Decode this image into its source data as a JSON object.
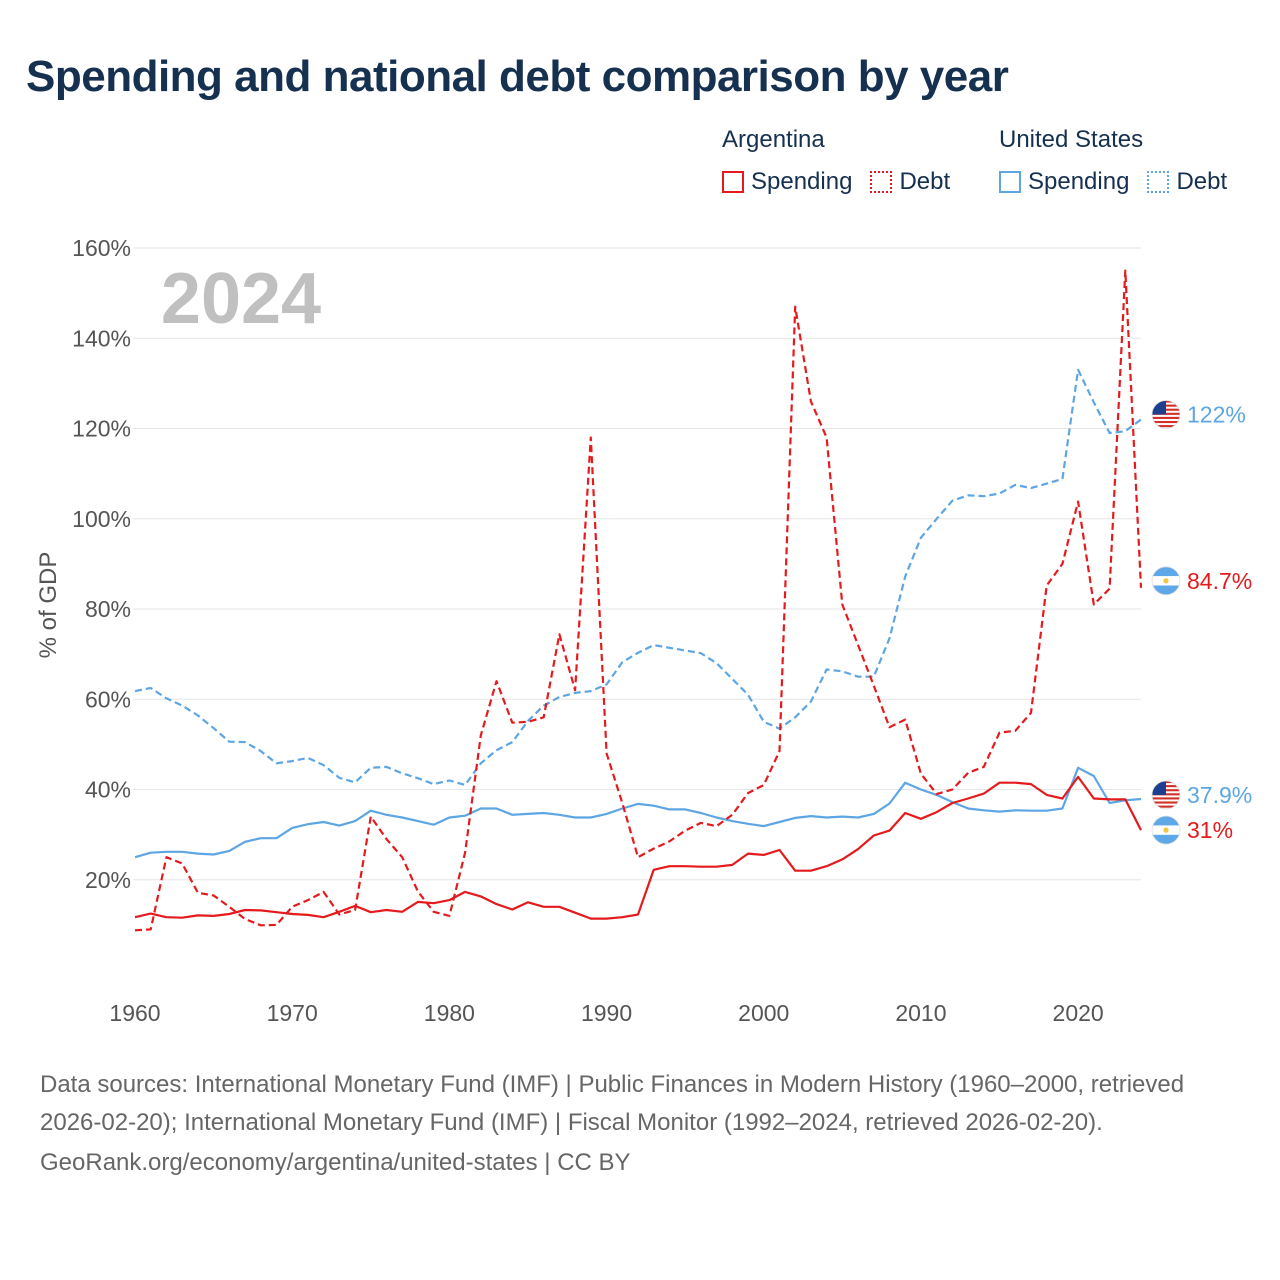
{
  "title": "Spending and national debt comparison by year",
  "legend": {
    "groups": [
      {
        "country": "Argentina",
        "color": "#e41a1c",
        "spending_label": "Spending",
        "debt_label": "Debt"
      },
      {
        "country": "United States",
        "color": "#5da5e3",
        "spending_label": "Spending",
        "debt_label": "Debt"
      }
    ]
  },
  "footer": {
    "sources": "Data sources: International Monetary Fund (IMF) | Public Finances in Modern History (1960–2000, retrieved 2026-02-20); International Monetary Fund (IMF) | Fiscal Monitor (1992–2024, retrieved 2026-02-20).",
    "credit": "GeoRank.org/economy/argentina/united-states | CC BY"
  },
  "chart_data": {
    "type": "line",
    "year_label": "2024",
    "ylabel": "% of GDP",
    "xlabel": "",
    "xlim": [
      1960,
      2024
    ],
    "ylim": [
      0,
      160
    ],
    "x_ticks": [
      1960,
      1970,
      1980,
      1990,
      2000,
      2010,
      2020
    ],
    "y_ticks": [
      20,
      40,
      60,
      80,
      100,
      120,
      140,
      160
    ],
    "y_tick_labels": [
      "20%",
      "40%",
      "60%",
      "80%",
      "100%",
      "120%",
      "140%",
      "160%"
    ],
    "x": [
      1960,
      1961,
      1962,
      1963,
      1964,
      1965,
      1966,
      1967,
      1968,
      1969,
      1970,
      1971,
      1972,
      1973,
      1974,
      1975,
      1976,
      1977,
      1978,
      1979,
      1980,
      1981,
      1982,
      1983,
      1984,
      1985,
      1986,
      1987,
      1988,
      1989,
      1990,
      1991,
      1992,
      1993,
      1994,
      1995,
      1996,
      1997,
      1998,
      1999,
      2000,
      2001,
      2002,
      2003,
      2004,
      2005,
      2006,
      2007,
      2008,
      2009,
      2010,
      2011,
      2012,
      2013,
      2014,
      2015,
      2016,
      2017,
      2018,
      2019,
      2020,
      2021,
      2022,
      2023,
      2024
    ],
    "series": [
      {
        "name": "Argentina Spending",
        "country": "Argentina",
        "indicator": "Spending",
        "color": "#e41a1c",
        "dashed": false,
        "values": [
          11.7,
          12.5,
          11.7,
          11.6,
          12.1,
          12.0,
          12.4,
          13.3,
          13.2,
          12.8,
          12.4,
          12.2,
          11.7,
          12.9,
          14.2,
          12.8,
          13.3,
          12.9,
          15.1,
          14.8,
          15.5,
          17.3,
          16.3,
          14.6,
          13.4,
          15.0,
          14.0,
          14.0,
          12.7,
          11.4,
          11.4,
          11.7,
          12.3,
          22.2,
          23.0,
          23.0,
          22.9,
          22.9,
          23.3,
          25.8,
          25.5,
          26.6,
          22.0,
          22.0,
          23.0,
          24.5,
          26.8,
          29.8,
          30.9,
          34.8,
          33.5,
          35.0,
          37.0,
          38.0,
          39.1,
          41.5,
          41.5,
          41.2,
          38.8,
          38.0,
          42.8,
          38.0,
          37.8,
          37.8,
          31.0
        ],
        "end_label": "31%"
      },
      {
        "name": "Argentina Debt",
        "country": "Argentina",
        "indicator": "Debt",
        "color": "#e41a1c",
        "dashed": true,
        "values": [
          8.8,
          9.0,
          25.0,
          23.6,
          17.1,
          16.5,
          14.0,
          11.3,
          9.9,
          10.0,
          14.0,
          15.5,
          17.3,
          12.3,
          13.3,
          34.0,
          29.0,
          25.0,
          17.4,
          12.9,
          12.0,
          26.0,
          52.0,
          64.0,
          54.8,
          55.0,
          56.0,
          74.4,
          62.0,
          118.0,
          48.0,
          37.0,
          25.0,
          26.9,
          28.5,
          30.9,
          32.6,
          31.9,
          34.4,
          39.2,
          41.0,
          48.5,
          147.0,
          126.0,
          118.0,
          81.0,
          72.0,
          63.0,
          53.8,
          55.5,
          43.5,
          39.0,
          40.0,
          43.7,
          45.0,
          52.6,
          53.0,
          57.0,
          85.2,
          90.0,
          103.8,
          81.0,
          84.5,
          155.0,
          84.7
        ],
        "end_label": "84.7%"
      },
      {
        "name": "United States Spending",
        "country": "United States",
        "indicator": "Spending",
        "color": "#5da5e3",
        "dashed": false,
        "values": [
          25.0,
          26.0,
          26.2,
          26.2,
          25.8,
          25.6,
          26.4,
          28.4,
          29.2,
          29.2,
          31.5,
          32.3,
          32.8,
          32.0,
          33.0,
          35.3,
          34.4,
          33.8,
          33.0,
          32.2,
          33.8,
          34.2,
          35.8,
          35.8,
          34.4,
          34.6,
          34.8,
          34.4,
          33.8,
          33.8,
          34.6,
          35.8,
          36.8,
          36.4,
          35.6,
          35.6,
          34.8,
          33.8,
          33.0,
          32.4,
          31.9,
          32.8,
          33.7,
          34.1,
          33.8,
          34.0,
          33.8,
          34.6,
          36.9,
          41.5,
          40.0,
          38.8,
          37.2,
          35.8,
          35.4,
          35.1,
          35.4,
          35.3,
          35.3,
          35.8,
          44.8,
          43.0,
          37.0,
          37.6,
          37.9
        ],
        "end_label": "37.9%"
      },
      {
        "name": "United States Debt",
        "country": "United States",
        "indicator": "Debt",
        "color": "#5da5e3",
        "dashed": true,
        "values": [
          61.8,
          62.5,
          60.2,
          58.6,
          56.4,
          53.6,
          50.6,
          50.5,
          48.5,
          45.8,
          46.3,
          47.0,
          45.4,
          42.6,
          41.6,
          44.8,
          45.0,
          43.6,
          42.5,
          41.2,
          42.0,
          41.0,
          45.8,
          48.7,
          50.5,
          55.2,
          58.6,
          60.5,
          61.4,
          61.8,
          63.3,
          68.2,
          70.3,
          72.0,
          71.4,
          70.8,
          70.2,
          68.0,
          64.5,
          61.0,
          55.0,
          53.5,
          56.0,
          59.5,
          66.6,
          66.2,
          65.0,
          65.0,
          73.5,
          87.2,
          95.8,
          100.0,
          104.0,
          105.2,
          105.0,
          105.6,
          107.5,
          106.8,
          107.8,
          108.8,
          133.0,
          125.8,
          119.0,
          119.4,
          122.0
        ],
        "end_label": "122%"
      }
    ]
  }
}
